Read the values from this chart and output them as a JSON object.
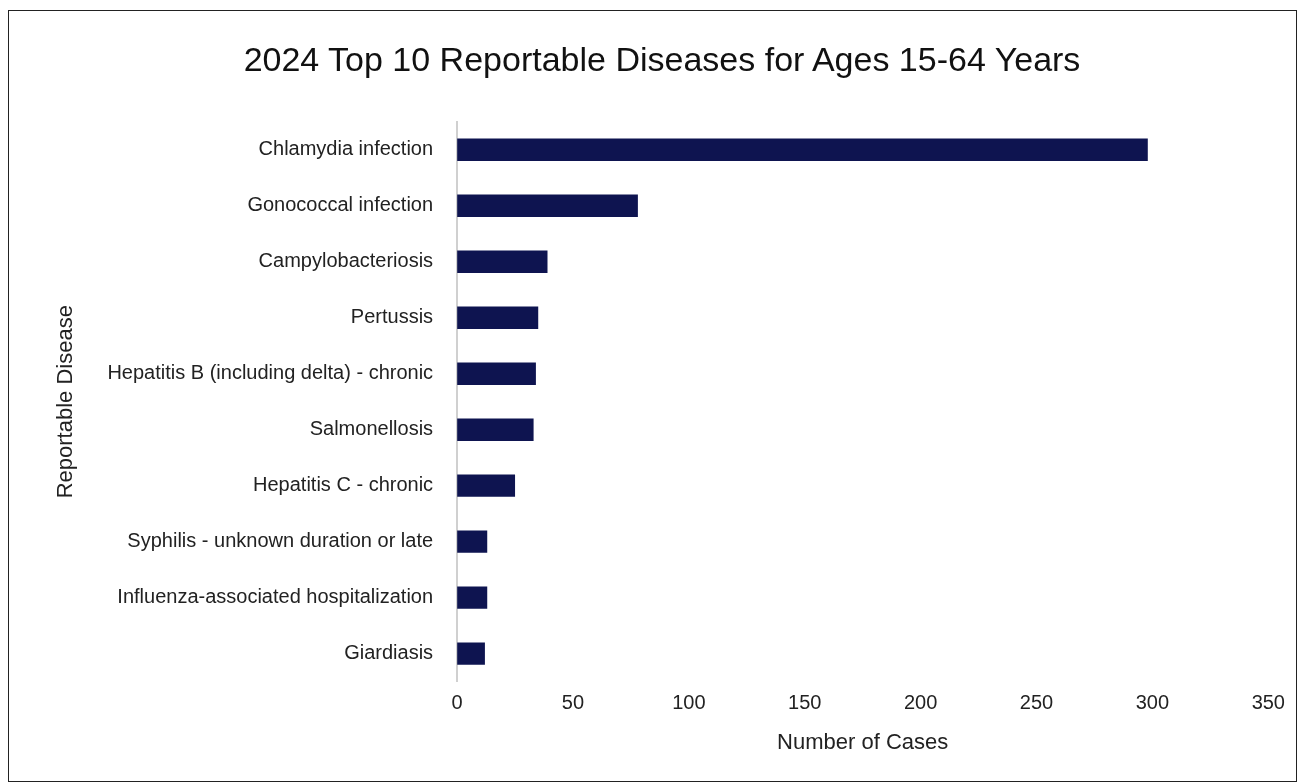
{
  "chart_data": {
    "type": "bar",
    "orientation": "horizontal",
    "title": "2024 Top 10 Reportable Diseases for Ages 15-64 Years",
    "xlabel": "Number of Cases",
    "ylabel": "Reportable Disease",
    "categories": [
      "Chlamydia infection",
      "Gonococcal infection",
      "Campylobacteriosis",
      "Pertussis",
      "Hepatitis B (including delta) - chronic",
      "Salmonellosis",
      "Hepatitis C - chronic",
      "Syphilis - unknown duration or late",
      "Influenza-associated hospitalization",
      "Giardiasis"
    ],
    "values": [
      298,
      78,
      39,
      35,
      34,
      33,
      25,
      13,
      13,
      12
    ],
    "color": "#0e1450",
    "xlim": [
      0,
      350
    ],
    "xticks": [
      0,
      50,
      100,
      150,
      200,
      250,
      300,
      350
    ],
    "grid": false,
    "legend": false
  }
}
